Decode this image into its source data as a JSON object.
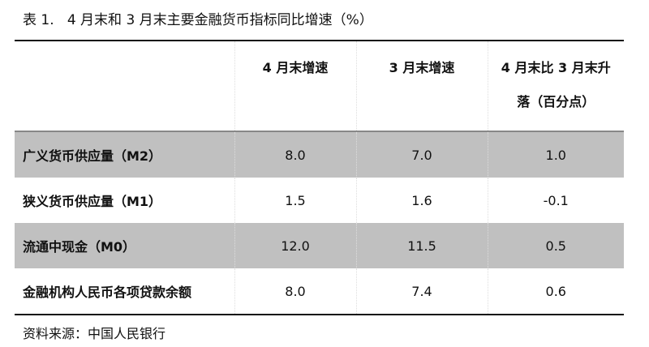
{
  "title": "表 1.   4 月末和 3 月末主要金融货币指标同比增速（%）",
  "table": {
    "headers": [
      "",
      "4 月末增速",
      "3 月末增速",
      "4 月末比 3 月末升落（百分点）"
    ],
    "header_last_line1": "4 月末比 3 月末升",
    "header_last_line2": "落（百分点）",
    "rows": [
      {
        "label": "广义货币供应量（M2）",
        "apr": "8.0",
        "mar": "7.0",
        "change": "1.0"
      },
      {
        "label": "狭义货币供应量（M1）",
        "apr": "1.5",
        "mar": "1.6",
        "change": "-0.1"
      },
      {
        "label": "流通中现金（M0）",
        "apr": "12.0",
        "mar": "11.5",
        "change": "0.5"
      },
      {
        "label": "金融机构人民币各项贷款余额",
        "apr": "8.0",
        "mar": "7.4",
        "change": "0.6"
      }
    ]
  },
  "source": "资料来源：中国人民银行",
  "colors": {
    "shaded_row": "#c0c0c0"
  }
}
